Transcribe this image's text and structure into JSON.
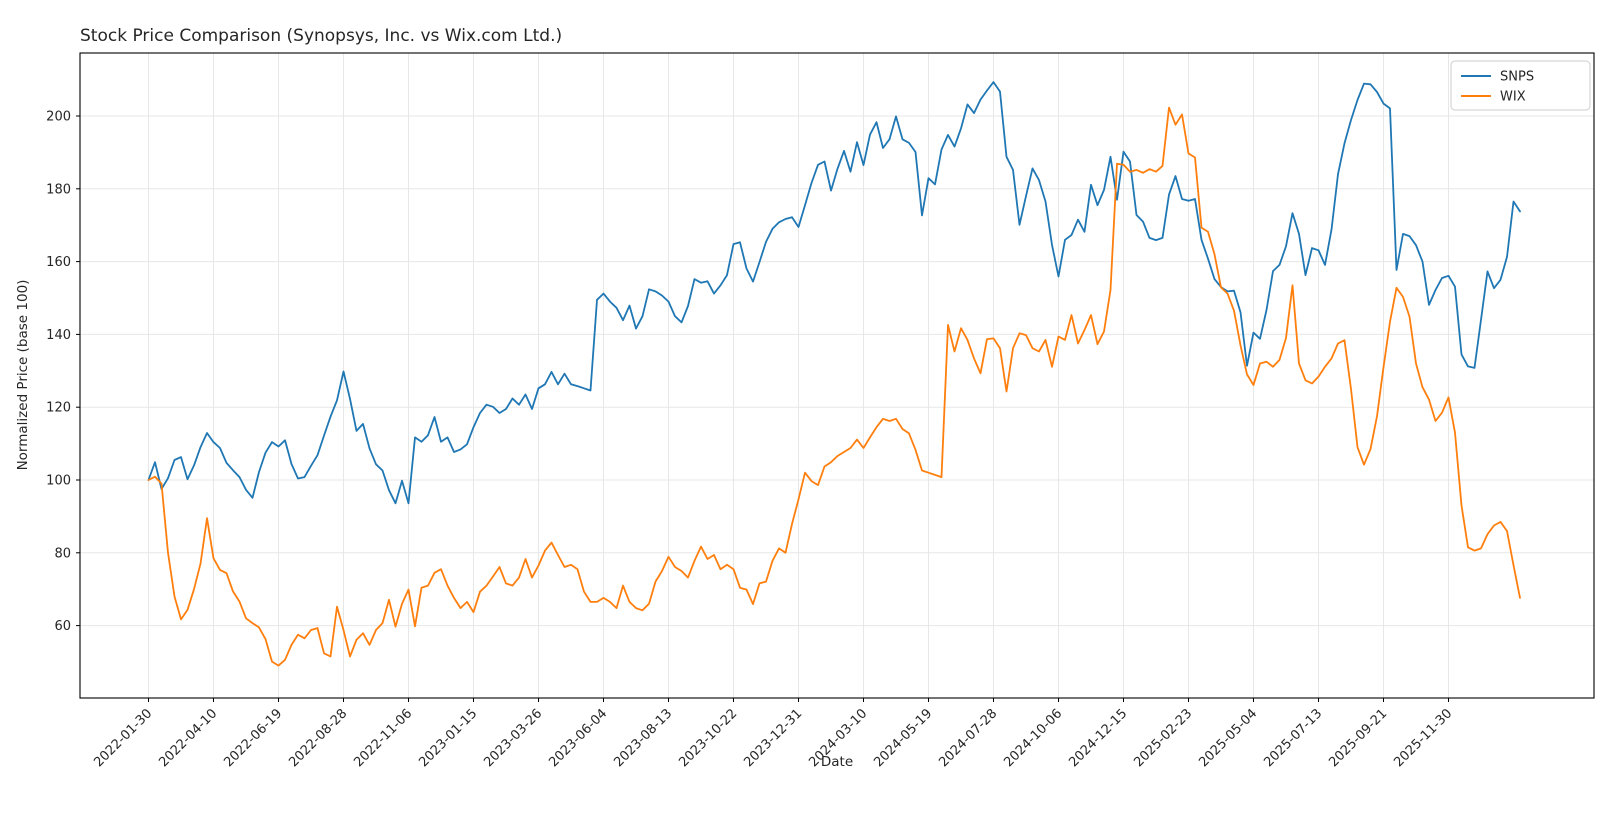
{
  "title": "Stock Price Comparison (Synopsys, Inc. vs Wix.com Ltd.)",
  "axes": {
    "xlabel": "Date",
    "ylabel": "Normalized Price (base 100)"
  },
  "legend": {
    "items": [
      {
        "label": "SNPS",
        "color": "#1f77b4"
      },
      {
        "label": "WIX",
        "color": "#ff7f0e"
      }
    ]
  },
  "colors": {
    "grid": "#e7e7e7",
    "spine": "#000000",
    "background": "#ffffff"
  },
  "chart_data": {
    "type": "line",
    "title": "Stock Price Comparison (Synopsys, Inc. vs Wix.com Ltd.)",
    "xlabel": "Date",
    "ylabel": "Normalized Price (base 100)",
    "x_unit": "weekly samples starting 2022-01-30",
    "ylim": [
      40,
      217.5
    ],
    "grid": true,
    "legend_position": "upper right",
    "y_ticks": [
      60,
      80,
      100,
      120,
      140,
      160,
      180,
      200
    ],
    "x_tick_weeks": [
      0,
      10,
      20,
      30,
      40,
      50,
      60,
      70,
      80,
      90,
      100,
      110,
      120,
      130,
      140,
      150,
      160,
      170,
      180,
      190,
      200
    ],
    "x_tick_labels": [
      "2022-01-30",
      "2022-04-10",
      "2022-06-19",
      "2022-08-28",
      "2022-11-06",
      "2023-01-15",
      "2023-03-26",
      "2023-06-04",
      "2023-08-13",
      "2023-10-22",
      "2023-12-31",
      "2024-03-10",
      "2024-05-19",
      "2024-07-28",
      "2024-10-06",
      "2024-12-15",
      "2025-02-23",
      "2025-05-04",
      "2025-07-13",
      "2025-09-21",
      "2025-11-30"
    ],
    "series": [
      {
        "name": "SNPS",
        "color": "#1f77b4",
        "values": [
          100,
          104.9,
          97.5,
          100.5,
          105.5,
          106.3,
          100.2,
          104,
          109,
          112.9,
          110.4,
          108.8,
          104.7,
          102.7,
          100.8,
          97.3,
          95.1,
          102.2,
          107.5,
          110.4,
          109.2,
          110.9,
          104.4,
          100.4,
          100.8,
          103.9,
          106.8,
          112.2,
          117.4,
          121.9,
          129.8,
          122.3,
          113.5,
          115.4,
          108.7,
          104.3,
          102.6,
          97.2,
          93.6,
          99.8,
          93.6,
          111.7,
          110.5,
          112.3,
          117.3,
          110.5,
          111.7,
          107.7,
          108.4,
          109.8,
          114.5,
          118.4,
          120.7,
          120.1,
          118.4,
          119.5,
          122.4,
          120.7,
          123.5,
          119.5,
          125.2,
          126.3,
          129.7,
          126.3,
          129.2,
          126.3,
          125.8,
          125.2,
          124.6,
          149.5,
          151.2,
          149,
          147.3,
          143.9,
          147.9,
          141.6,
          145,
          152.4,
          151.8,
          150.7,
          149,
          145,
          143.3,
          147.8,
          155.2,
          154.2,
          154.6,
          151.2,
          153.5,
          156.3,
          164.8,
          165.3,
          158.1,
          154.5,
          159.9,
          165.4,
          169,
          170.8,
          171.7,
          172.2,
          169.5,
          175.5,
          181.6,
          186.6,
          187.5,
          179.5,
          185.5,
          190.4,
          184.7,
          192.8,
          186.5,
          194.9,
          198.3,
          191.2,
          193.6,
          199.9,
          193.6,
          192.6,
          190.1,
          172.7,
          182.9,
          181.2,
          190.8,
          194.8,
          191.6,
          196.6,
          203.2,
          200.8,
          204.5,
          207,
          209.3,
          206.7,
          188.8,
          185.2,
          170.1,
          178,
          185.6,
          182.4,
          176.5,
          164.6,
          155.9,
          166,
          167.3,
          171.5,
          168.2,
          181.1,
          175.5,
          179.7,
          188.8,
          177,
          190.2,
          187.5,
          172.8,
          171,
          166.5,
          165.9,
          166.5,
          178.4,
          183.5,
          177.2,
          176.7,
          177.2,
          166,
          160.8,
          155.2,
          153,
          151.8,
          152,
          146.1,
          131.4,
          140.5,
          138.8,
          146.7,
          157.4,
          159.1,
          164.2,
          173.3,
          167.6,
          156.3,
          163.7,
          163.1,
          159.1,
          168.8,
          184,
          192.5,
          198.9,
          204.4,
          208.9,
          208.7,
          206.6,
          203.4,
          202.1,
          157.7,
          167.6,
          167,
          164.5,
          160,
          148.1,
          152.2,
          155.5,
          156.1,
          153.1,
          134.5,
          131.2,
          130.8,
          144,
          157.3,
          152.7,
          155,
          161.3,
          176.5,
          173.8
        ]
      },
      {
        "name": "WIX",
        "color": "#ff7f0e",
        "values": [
          100,
          100.9,
          99,
          80,
          68,
          61.7,
          64.3,
          70,
          77,
          89.5,
          78.5,
          75.3,
          74.4,
          69.4,
          66.6,
          62,
          60.7,
          59.5,
          56.3,
          50.1,
          49,
          50.6,
          54.7,
          57.5,
          56.5,
          58.8,
          59.3,
          52.4,
          51.5,
          65.2,
          58.8,
          51.5,
          56.1,
          57.9,
          54.7,
          58.8,
          60.7,
          67.1,
          59.7,
          66,
          69.9,
          59.8,
          70.4,
          71,
          74.5,
          75.5,
          71,
          67.6,
          64.8,
          66.5,
          63.7,
          69.3,
          71,
          73.5,
          76.1,
          71.6,
          71,
          73.2,
          78.3,
          73.2,
          76.5,
          80.6,
          82.8,
          79.4,
          76.1,
          76.7,
          75.5,
          69.3,
          66.5,
          66.5,
          67.6,
          66.5,
          64.8,
          71,
          66.5,
          64.8,
          64.2,
          66,
          72.1,
          75,
          78.9,
          76.1,
          75,
          73.2,
          77.8,
          81.7,
          78.3,
          79.4,
          75.5,
          76.7,
          75.5,
          70.4,
          69.9,
          65.9,
          71.6,
          72.1,
          77.8,
          81.2,
          80,
          87.9,
          94.7,
          102,
          99.7,
          98.6,
          103.7,
          104.9,
          106.6,
          107.7,
          108.8,
          111.1,
          108.8,
          111.7,
          114.5,
          116.8,
          116.2,
          116.8,
          114,
          112.8,
          108.3,
          102.6,
          102,
          101.4,
          100.8,
          142.6,
          135.3,
          141.7,
          138.5,
          133.4,
          129.3,
          138.7,
          138.9,
          136.2,
          124.3,
          136.2,
          140.3,
          139.8,
          136.2,
          135.3,
          138.5,
          131.1,
          139.4,
          138.5,
          145.3,
          137.5,
          141.2,
          145.3,
          137.3,
          140.8,
          152.2,
          186.9,
          186.6,
          184.7,
          185.2,
          184.4,
          185.4,
          184.7,
          186.3,
          202.3,
          197.6,
          200.4,
          189.7,
          188.6,
          169.3,
          168.2,
          162,
          152.9,
          151.2,
          146.5,
          137,
          129,
          126.1,
          132,
          132.5,
          131.1,
          133,
          139,
          153.5,
          132,
          127.4,
          126.5,
          128.4,
          131.1,
          133.4,
          137.5,
          138.4,
          125,
          109,
          104.2,
          108.5,
          117.5,
          131,
          143.5,
          152.8,
          150.3,
          144.9,
          132,
          125.5,
          122.1,
          116.2,
          118.5,
          122.7,
          113,
          93,
          81.5,
          80.6,
          81.2,
          85.1,
          87.5,
          88.5,
          86,
          76.6,
          67.6
        ]
      }
    ]
  }
}
